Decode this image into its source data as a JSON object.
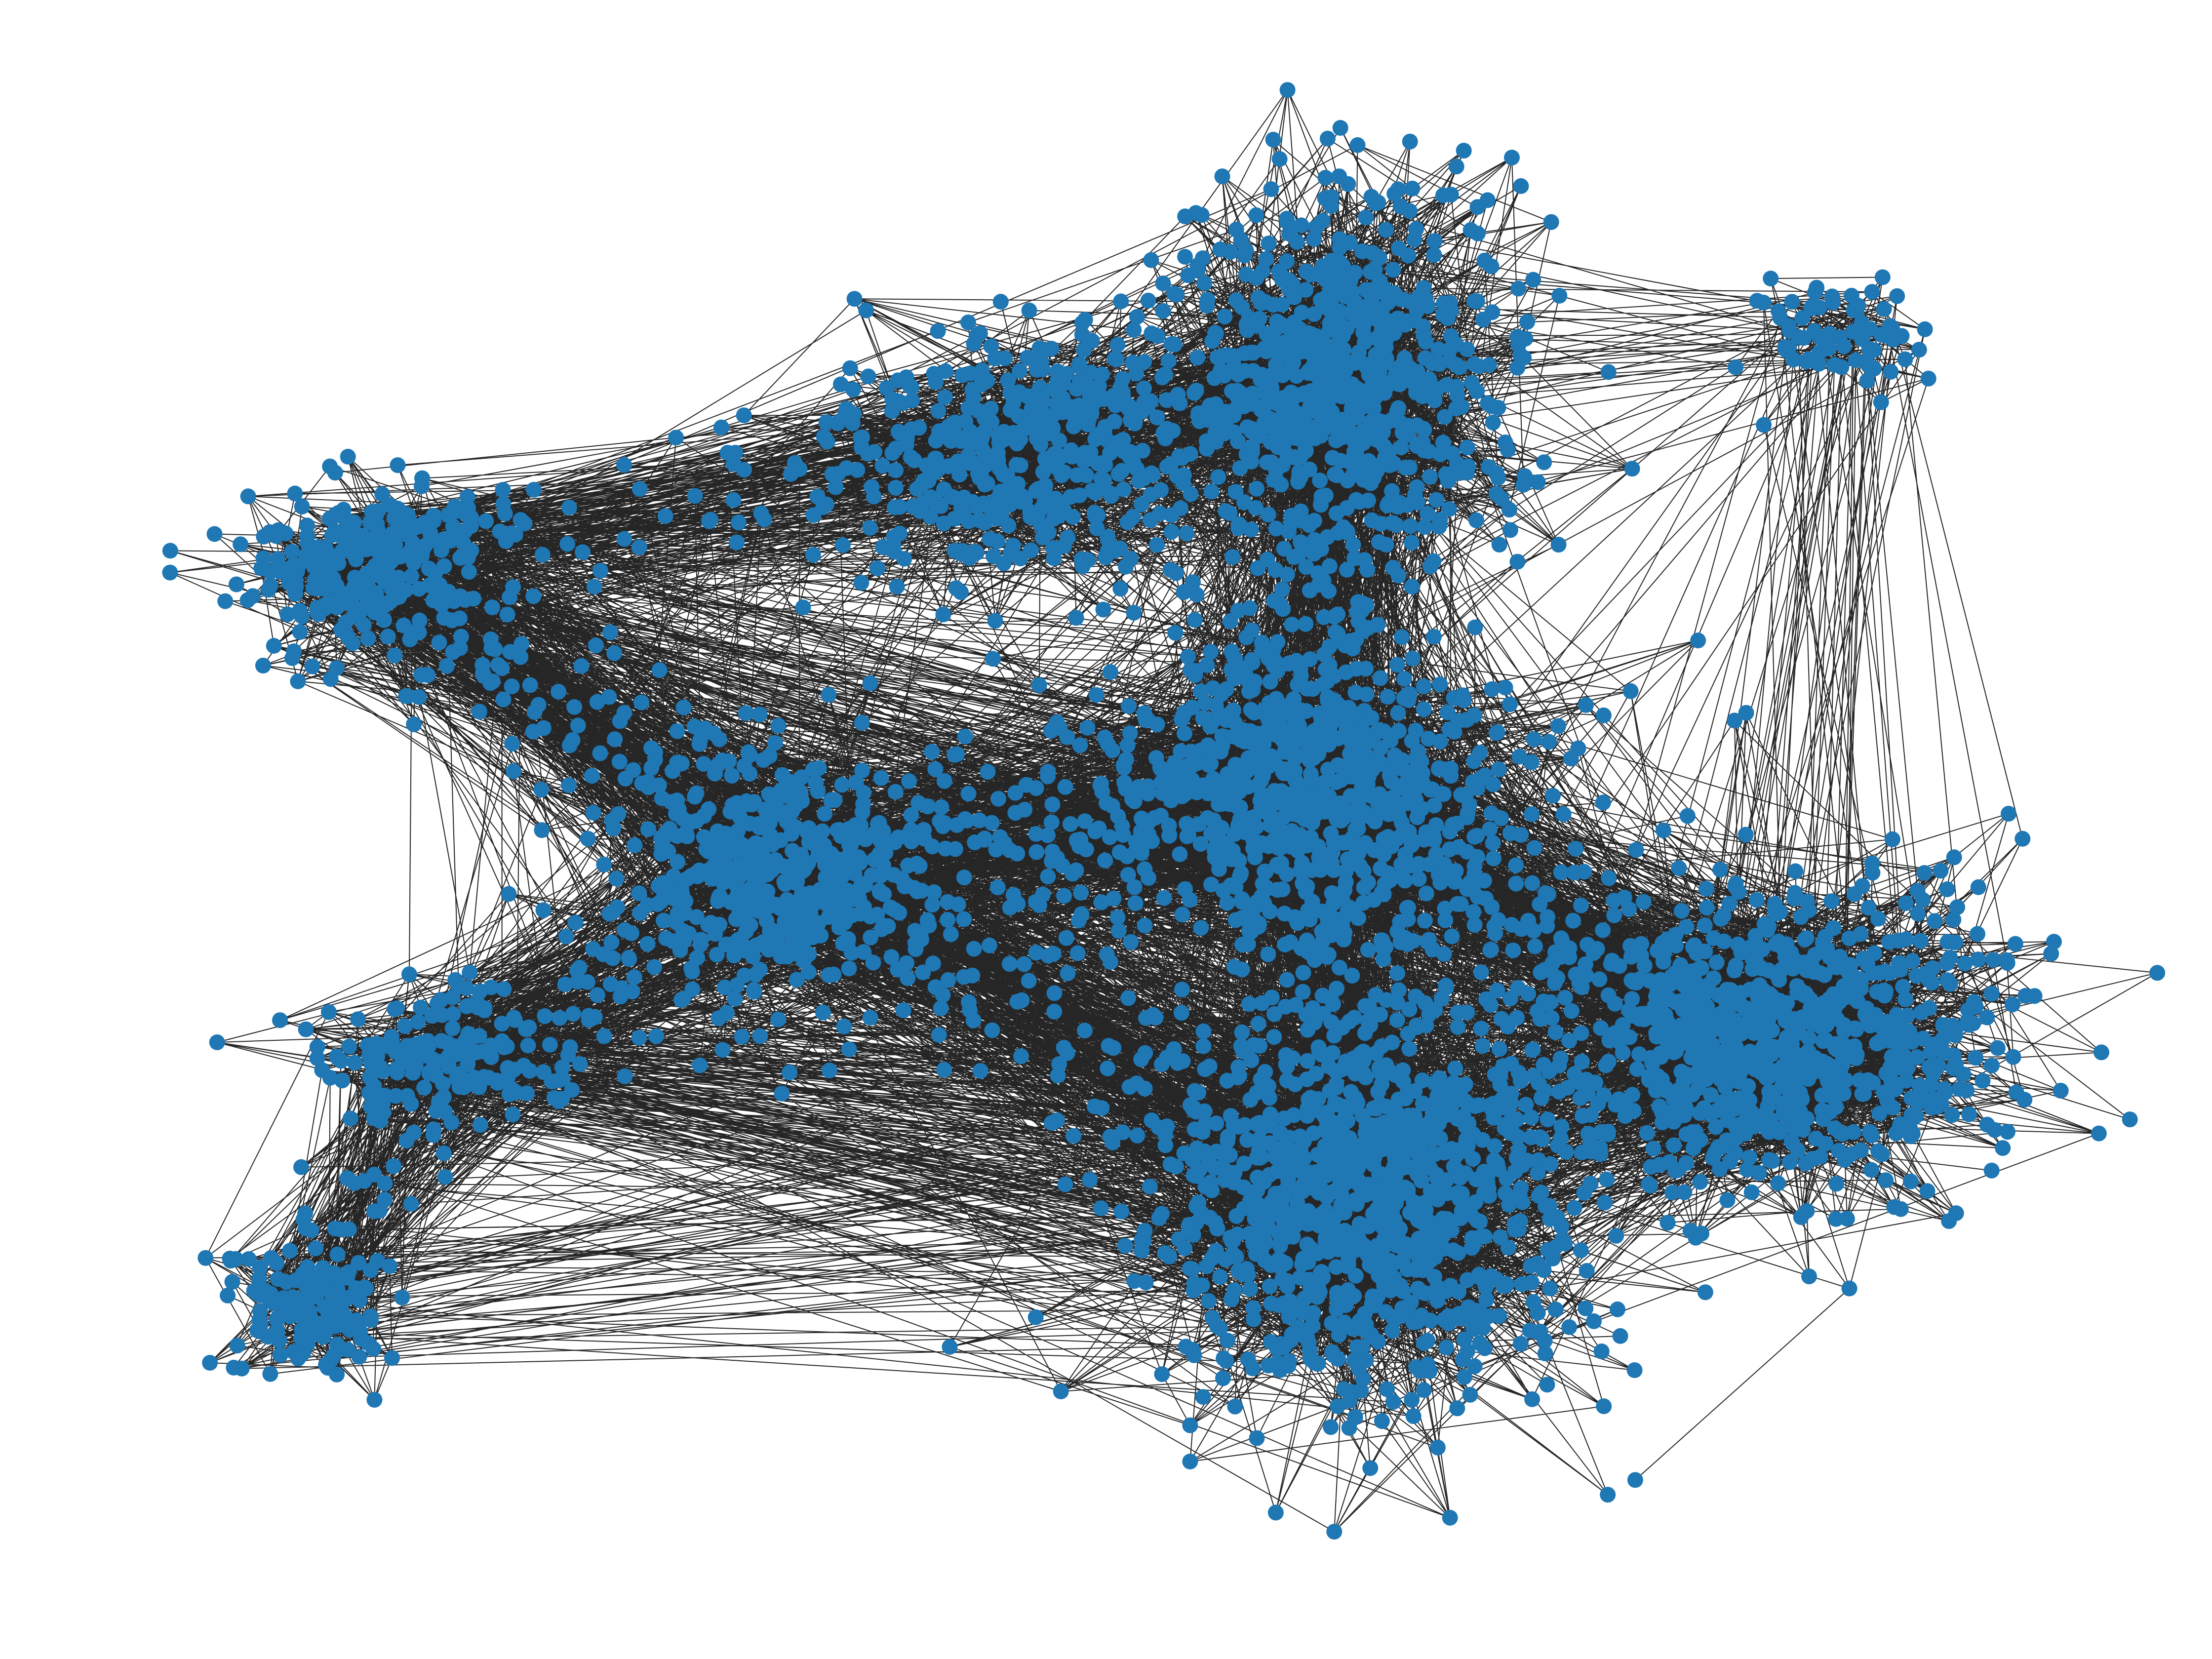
{
  "diagram": {
    "type": "network-graph",
    "node_color": "#1f77b4",
    "edge_color": "#000000",
    "background_color": "#ffffff",
    "title": "",
    "clusters": [
      {
        "id": "c1",
        "name": "",
        "size": "large"
      },
      {
        "id": "c2",
        "name": "",
        "size": "large"
      },
      {
        "id": "c3",
        "name": "",
        "size": "large"
      },
      {
        "id": "c4",
        "name": "",
        "size": "medium"
      },
      {
        "id": "c5",
        "name": "",
        "size": "medium"
      },
      {
        "id": "c6",
        "name": "",
        "size": "medium"
      },
      {
        "id": "c7",
        "name": "",
        "size": "small"
      },
      {
        "id": "c8",
        "name": "",
        "size": "small"
      },
      {
        "id": "c9",
        "name": "",
        "size": "small"
      },
      {
        "id": "c10",
        "name": "",
        "size": "small"
      }
    ]
  }
}
